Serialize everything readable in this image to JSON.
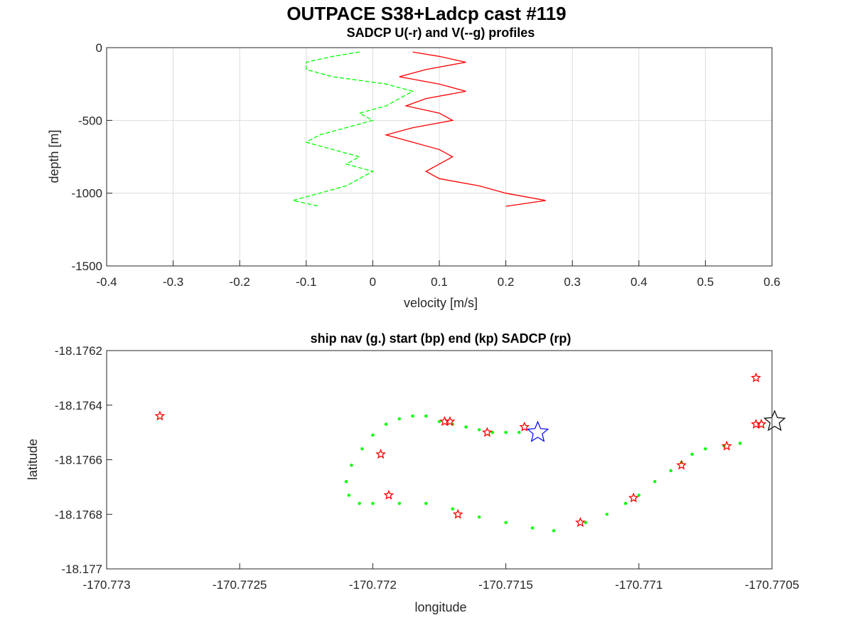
{
  "figure_title": "OUTPACE S38+Ladcp cast #119",
  "chart_data": [
    {
      "type": "line",
      "title": "SADCP U(-r) and V(--g) profiles",
      "xlabel": "velocity [m/s]",
      "ylabel": "depth [m]",
      "xlim": [
        -0.4,
        0.6
      ],
      "ylim": [
        -1500,
        0
      ],
      "xticks": [
        "-0.4",
        "-0.3",
        "-0.2",
        "-0.1",
        "0",
        "0.1",
        "0.2",
        "0.3",
        "0.4",
        "0.5",
        "0.6"
      ],
      "yticks": [
        "0",
        "-500",
        "-1000",
        "-1500"
      ],
      "grid": true,
      "series": [
        {
          "color": "#ff0000",
          "style": "solid",
          "y": [
            -30,
            -60,
            -100,
            -150,
            -200,
            -250,
            -300,
            -350,
            -400,
            -450,
            -500,
            -550,
            -600,
            -650,
            -700,
            -750,
            -800,
            -850,
            -900,
            -950,
            -1000,
            -1050,
            -1090
          ],
          "x": [
            0.06,
            0.1,
            0.14,
            0.08,
            0.04,
            0.1,
            0.14,
            0.08,
            0.05,
            0.1,
            0.12,
            0.06,
            0.02,
            0.06,
            0.1,
            0.12,
            0.1,
            0.08,
            0.1,
            0.16,
            0.2,
            0.26,
            0.2
          ]
        },
        {
          "color": "#00ff00",
          "style": "dashed",
          "y": [
            -30,
            -60,
            -100,
            -150,
            -200,
            -250,
            -300,
            -350,
            -400,
            -450,
            -500,
            -550,
            -600,
            -650,
            -700,
            -750,
            -800,
            -850,
            -900,
            -950,
            -1000,
            -1050,
            -1090
          ],
          "x": [
            -0.02,
            -0.06,
            -0.1,
            -0.1,
            -0.06,
            0.02,
            0.06,
            0.04,
            0.02,
            -0.02,
            0.0,
            -0.04,
            -0.08,
            -0.1,
            -0.06,
            -0.02,
            -0.04,
            0.0,
            -0.02,
            -0.04,
            -0.08,
            -0.12,
            -0.08
          ]
        }
      ]
    },
    {
      "type": "scatter",
      "title": "ship nav (g.) start (bp) end (kp) SADCP (rp)",
      "xlabel": "longitude",
      "ylabel": "latitude",
      "xlim": [
        -170.773,
        -170.7705
      ],
      "ylim": [
        -18.177,
        -18.1762
      ],
      "xticks": [
        "-170.773",
        "-170.7725",
        "-170.772",
        "-170.7715",
        "-170.771",
        "-170.7705"
      ],
      "yticks": [
        "-18.1762",
        "-18.1764",
        "-18.1766",
        "-18.1768",
        "-18.177"
      ],
      "grid": false,
      "series": [
        {
          "marker": "dot",
          "color": "#00ff00",
          "points": [
            [
              -170.77145,
              -18.1765
            ],
            [
              -170.7715,
              -18.1765
            ],
            [
              -170.77155,
              -18.1765
            ],
            [
              -170.7716,
              -18.17649
            ],
            [
              -170.77165,
              -18.17648
            ],
            [
              -170.7717,
              -18.17647
            ],
            [
              -170.77175,
              -18.17646
            ],
            [
              -170.7718,
              -18.17644
            ],
            [
              -170.77185,
              -18.17644
            ],
            [
              -170.7719,
              -18.17645
            ],
            [
              -170.77195,
              -18.17647
            ],
            [
              -170.772,
              -18.17651
            ],
            [
              -170.77204,
              -18.17656
            ],
            [
              -170.77208,
              -18.17662
            ],
            [
              -170.7721,
              -18.17668
            ],
            [
              -170.77209,
              -18.17673
            ],
            [
              -170.77205,
              -18.17676
            ],
            [
              -170.772,
              -18.17676
            ],
            [
              -170.7719,
              -18.17676
            ],
            [
              -170.7718,
              -18.17676
            ],
            [
              -170.7717,
              -18.17678
            ],
            [
              -170.7716,
              -18.17681
            ],
            [
              -170.7715,
              -18.17683
            ],
            [
              -170.7714,
              -18.17685
            ],
            [
              -170.77132,
              -18.17686
            ],
            [
              -170.7712,
              -18.17683
            ],
            [
              -170.77112,
              -18.1768
            ],
            [
              -170.77105,
              -18.17676
            ],
            [
              -170.771,
              -18.17673
            ],
            [
              -170.77094,
              -18.17668
            ],
            [
              -170.77088,
              -18.17664
            ],
            [
              -170.77084,
              -18.17661
            ],
            [
              -170.7708,
              -18.17658
            ],
            [
              -170.77075,
              -18.17656
            ],
            [
              -170.77068,
              -18.17655
            ],
            [
              -170.77062,
              -18.17654
            ]
          ]
        },
        {
          "marker": "star",
          "color": "#ff0000",
          "name": "SADCP",
          "points": [
            [
              -170.7728,
              -18.17644
            ],
            [
              -170.77173,
              -18.17646
            ],
            [
              -170.77171,
              -18.17646
            ],
            [
              -170.77157,
              -18.1765
            ],
            [
              -170.77143,
              -18.17648
            ],
            [
              -170.77197,
              -18.17658
            ],
            [
              -170.77194,
              -18.17673
            ],
            [
              -170.77168,
              -18.1768
            ],
            [
              -170.77122,
              -18.17683
            ],
            [
              -170.77102,
              -18.17674
            ],
            [
              -170.77084,
              -18.17662
            ],
            [
              -170.77067,
              -18.17655
            ],
            [
              -170.77056,
              -18.17647
            ],
            [
              -170.77054,
              -18.17647
            ],
            [
              -170.77056,
              -18.1763
            ]
          ]
        },
        {
          "marker": "star-large",
          "color": "#0000ff",
          "name": "start",
          "points": [
            [
              -170.77138,
              -18.1765
            ]
          ]
        },
        {
          "marker": "star-large",
          "color": "#000000",
          "name": "end",
          "points": [
            [
              -170.77049,
              -18.17646
            ]
          ]
        }
      ]
    }
  ]
}
